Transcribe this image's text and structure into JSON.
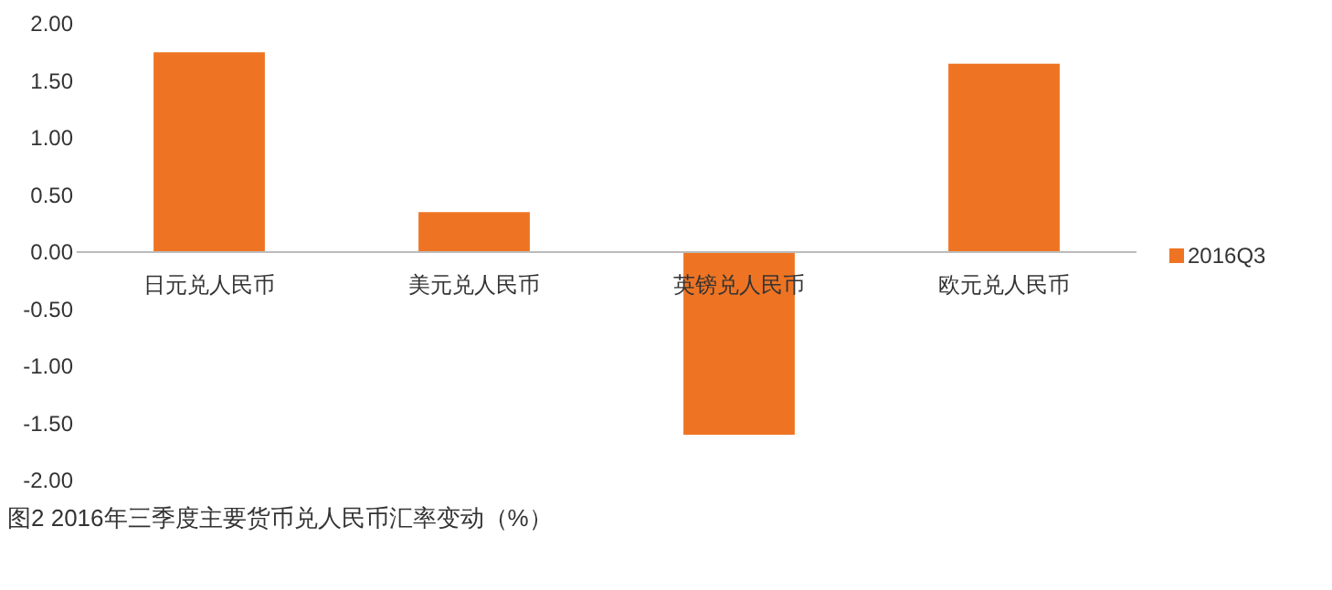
{
  "chart_data": {
    "type": "bar",
    "title": "图2 2016年三季度主要货币兑人民币汇率变动（%）",
    "categories": [
      "日元兑人民币",
      "美元兑人民币",
      "英镑兑人民币",
      "欧元兑人民币"
    ],
    "series": [
      {
        "name": "2016Q3",
        "color": "#ee7423",
        "values": [
          1.75,
          0.35,
          -1.6,
          1.65
        ]
      }
    ],
    "ylim": [
      -2,
      2
    ],
    "yticks": [
      {
        "value": -2,
        "label": "-2.00"
      },
      {
        "value": -1.5,
        "label": "-1.50"
      },
      {
        "value": -1,
        "label": "-1.00"
      },
      {
        "value": -0.5,
        "label": "-0.50"
      },
      {
        "value": 0,
        "label": "0.00"
      },
      {
        "value": 0.5,
        "label": "0.50"
      },
      {
        "value": 1,
        "label": "1.00"
      },
      {
        "value": 1.5,
        "label": "1.50"
      },
      {
        "value": 2,
        "label": "2.00"
      }
    ],
    "grid": false,
    "legend": "right"
  }
}
